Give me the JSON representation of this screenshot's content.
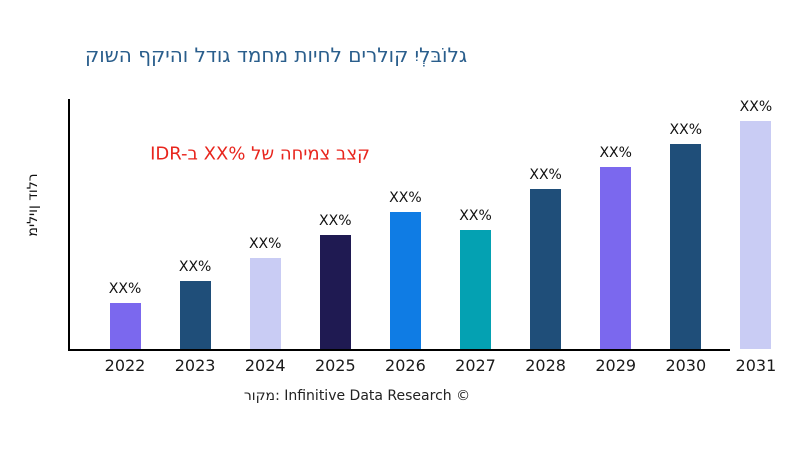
{
  "title": {
    "text": "קושה ףקיהו לדוג דמחמ תויחל םירלוק יִלְבּוֹלג"
  },
  "colors": {
    "title_blue": "#2A5E8C",
    "annotation_red": "#E8251D",
    "axis_black": "#000000",
    "value_label_black": "#111111"
  },
  "chart_data": {
    "type": "bar",
    "title": "קושה ףקיהו לדוג דמחמ תויחל םירלוק יִלְבּוֹלג",
    "ylabel": "מיליון דולר",
    "annotation": "IDR-ב XX% לש החימצ בצק",
    "source": "רוקמ: Infinitive Data Research ©",
    "categories": [
      "2022",
      "2023",
      "2024",
      "2025",
      "2026",
      "2027",
      "2028",
      "2029",
      "2030",
      "2031"
    ],
    "bar_labels": [
      "XX%",
      "XX%",
      "XX%",
      "XX%",
      "XX%",
      "XX%",
      "XX%",
      "XX%",
      "XX%",
      "XX%"
    ],
    "relative_bar_heights_pct_of_max": [
      20,
      30,
      40,
      50,
      60,
      52,
      70,
      80,
      90,
      100
    ],
    "bar_colors": [
      "#7B68EE",
      "#1F4E79",
      "#C9CCF4",
      "#1F1A52",
      "#0F7CE4",
      "#04A1B2",
      "#1F4E79",
      "#7B68EE",
      "#1F4E79",
      "#C9CCF4"
    ],
    "legend": false,
    "grid": false
  }
}
